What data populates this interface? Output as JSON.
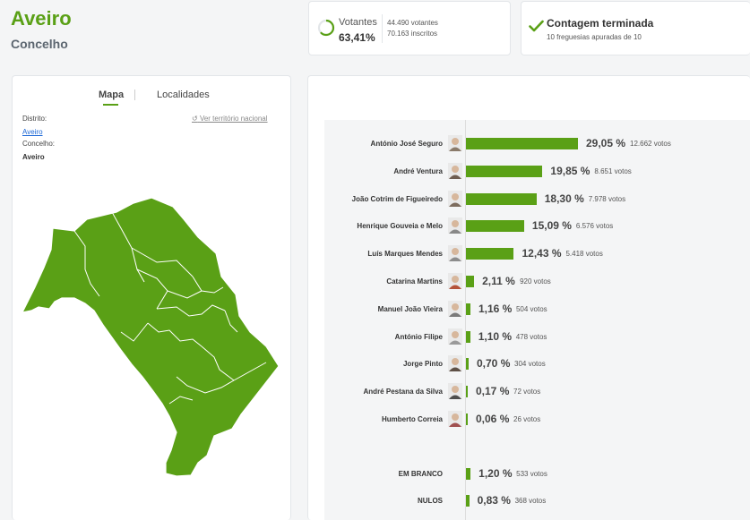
{
  "header": {
    "title": "Aveiro",
    "subtitle": "Concelho"
  },
  "turnout": {
    "label": "Votantes",
    "percent": "63,41%",
    "percent_value": 63.41,
    "voters": "44.490 votantes",
    "registered": "70.163 inscritos"
  },
  "count": {
    "title": "Contagem terminada",
    "subtitle": "10 freguesias apuradas de 10"
  },
  "map": {
    "tabs": [
      "Mapa",
      "Localidades"
    ],
    "district_label": "Distrito:",
    "district_value": "Aveiro",
    "municipality_label": "Concelho:",
    "municipality_value": "Aveiro",
    "national_link": "Ver território nacional",
    "fill_color": "#5aa016"
  },
  "results": {
    "accent": "#5aa016",
    "max_percent": 29.05,
    "candidates": [
      {
        "name": "António José Seguro",
        "percent": "29,05 %",
        "value": 29.05,
        "votes": "12.662 votos",
        "avatar": "#8a7a6a"
      },
      {
        "name": "André Ventura",
        "percent": "19,85 %",
        "value": 19.85,
        "votes": "8.651 votos",
        "avatar": "#6f5e52"
      },
      {
        "name": "João Cotrim de Figueiredo",
        "percent": "18,30 %",
        "value": 18.3,
        "votes": "7.978 votos",
        "avatar": "#7d6c5e"
      },
      {
        "name": "Henrique Gouveia e Melo",
        "percent": "15,09 %",
        "value": 15.09,
        "votes": "6.576 votos",
        "avatar": "#888888"
      },
      {
        "name": "Luís Marques Mendes",
        "percent": "12,43 %",
        "value": 12.43,
        "votes": "5.418 votos",
        "avatar": "#8c8c8c"
      },
      {
        "name": "Catarina Martins",
        "percent": "2,11 %",
        "value": 2.11,
        "votes": "920 votos",
        "avatar": "#b5533a"
      },
      {
        "name": "Manuel João Vieira",
        "percent": "1,16 %",
        "value": 1.16,
        "votes": "504 votos",
        "avatar": "#7a7a7a"
      },
      {
        "name": "António Filipe",
        "percent": "1,10 %",
        "value": 1.1,
        "votes": "478 votos",
        "avatar": "#9a9a9a"
      },
      {
        "name": "Jorge Pinto",
        "percent": "0,70 %",
        "value": 0.7,
        "votes": "304 votos",
        "avatar": "#5e5046"
      },
      {
        "name": "André Pestana da Silva",
        "percent": "0,17 %",
        "value": 0.17,
        "votes": "72 votos",
        "avatar": "#4e4e4e"
      },
      {
        "name": "Humberto Correia",
        "percent": "0,06 %",
        "value": 0.06,
        "votes": "26 votos",
        "avatar": "#a05050"
      }
    ],
    "others": [
      {
        "name": "EM BRANCO",
        "percent": "1,20 %",
        "value": 1.2,
        "votes": "533 votos"
      },
      {
        "name": "NULOS",
        "percent": "0,83 %",
        "value": 0.83,
        "votes": "368 votos"
      }
    ]
  }
}
